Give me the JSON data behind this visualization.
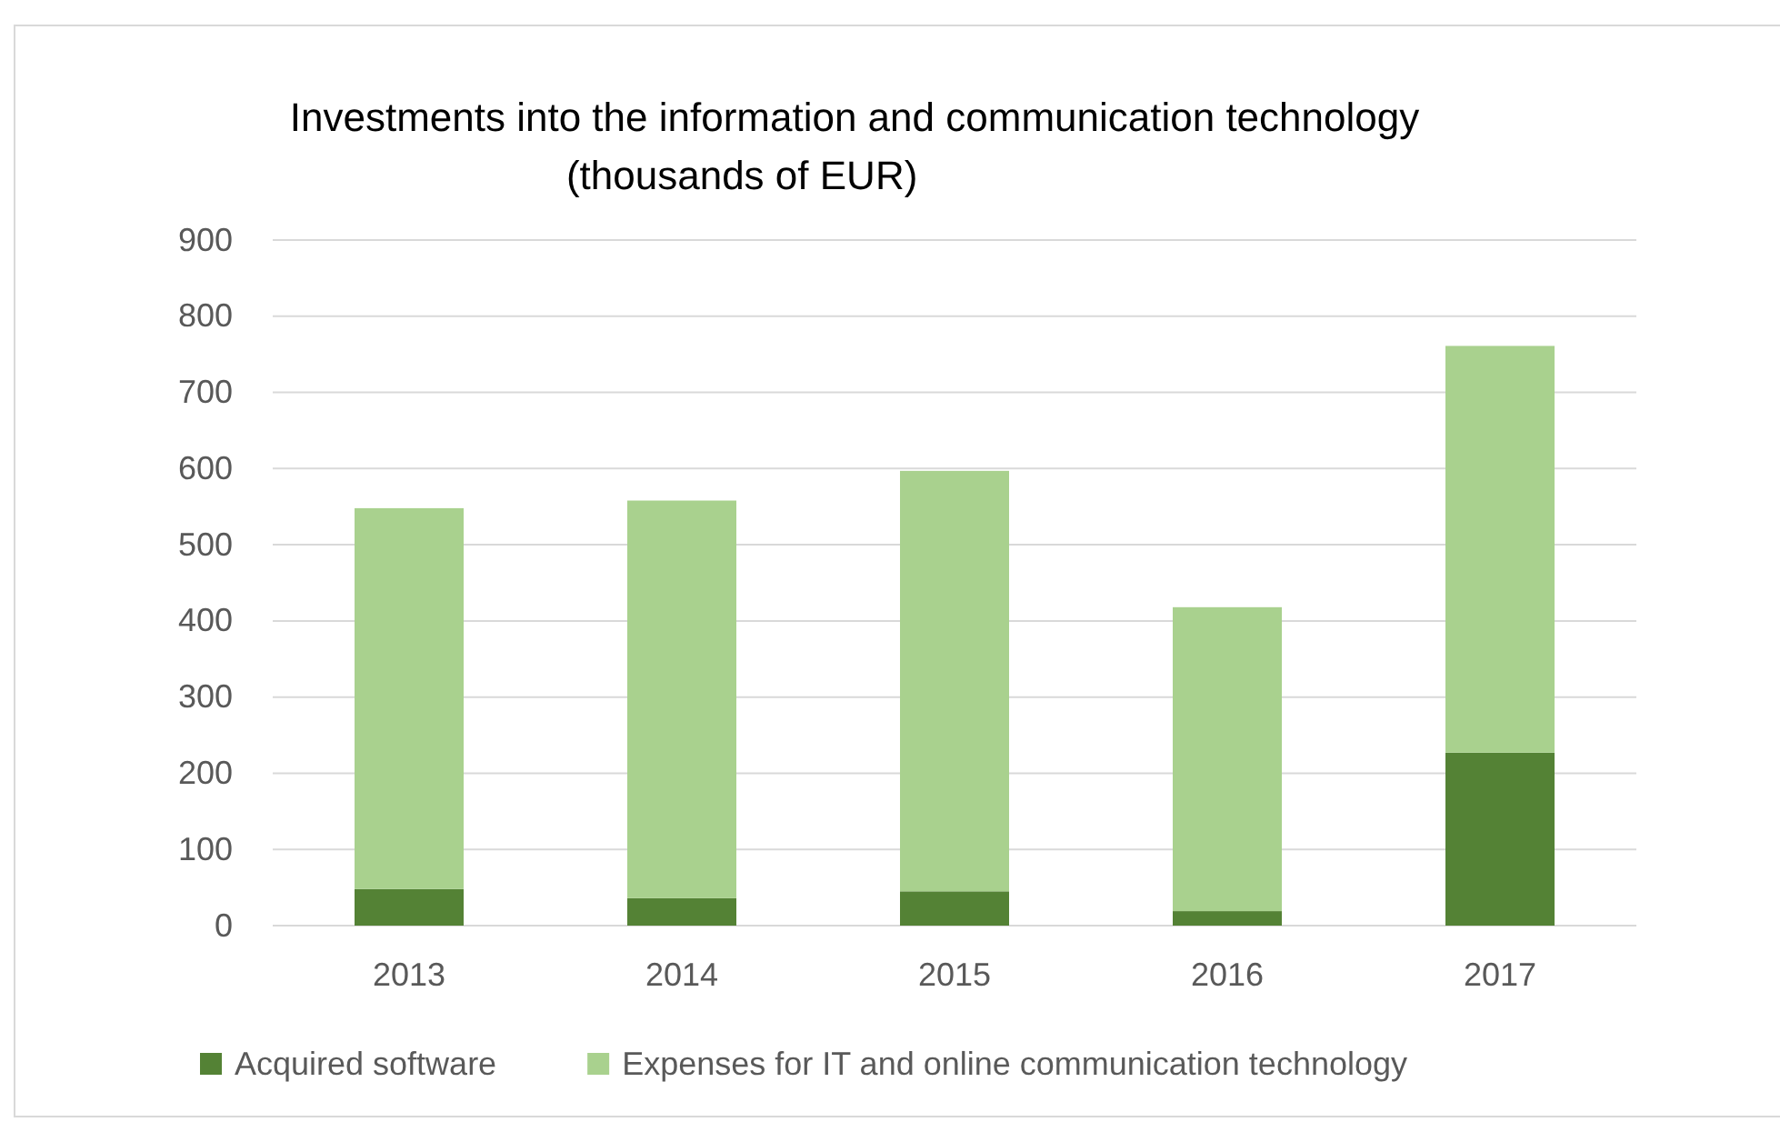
{
  "chart_data": {
    "type": "bar",
    "title": "Investments into the information and communication technology  (thousands of EUR)",
    "categories": [
      "2013",
      "2014",
      "2015",
      "2016",
      "2017"
    ],
    "stacked": true,
    "series": [
      {
        "name": "Acquired software",
        "color": "#548235",
        "values": [
          48,
          36,
          45,
          19,
          227
        ]
      },
      {
        "name": "Expenses for IT and online communication technology",
        "color": "#a9d18e",
        "values": [
          500,
          522,
          552,
          399,
          534
        ]
      }
    ],
    "ylim": [
      0,
      900
    ],
    "yticks": [
      0,
      100,
      200,
      300,
      400,
      500,
      600,
      700,
      800,
      900
    ],
    "grid": "y",
    "legend": "bottom"
  }
}
